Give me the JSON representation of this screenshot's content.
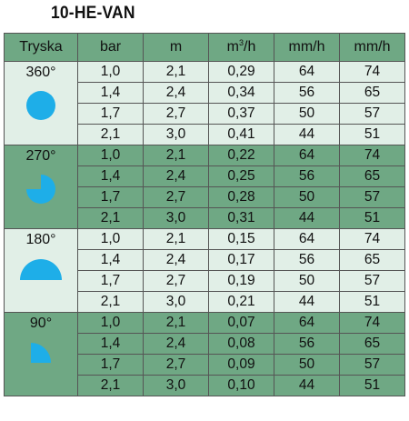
{
  "title": "10-HE-VAN",
  "headers": {
    "nozzle": "Tryska",
    "pressure": "bar",
    "radius": "m",
    "flow_base": "m",
    "flow_sup": "3",
    "flow_tail": "/h",
    "precip1": "mm/h",
    "precip2": "mm/h"
  },
  "colors": {
    "light_band": "#e1efe7",
    "dark_band": "#6fa884",
    "icon": "#1eaee8"
  },
  "groups": [
    {
      "arc": "360°",
      "icon": "full-circle-icon",
      "rows": [
        [
          "1,0",
          "2,1",
          "0,29",
          "64",
          "74"
        ],
        [
          "1,4",
          "2,4",
          "0,34",
          "56",
          "65"
        ],
        [
          "1,7",
          "2,7",
          "0,37",
          "50",
          "57"
        ],
        [
          "2,1",
          "3,0",
          "0,41",
          "44",
          "51"
        ]
      ]
    },
    {
      "arc": "270°",
      "icon": "three-quarter-circle-icon",
      "rows": [
        [
          "1,0",
          "2,1",
          "0,22",
          "64",
          "74"
        ],
        [
          "1,4",
          "2,4",
          "0,25",
          "56",
          "65"
        ],
        [
          "1,7",
          "2,7",
          "0,28",
          "50",
          "57"
        ],
        [
          "2,1",
          "3,0",
          "0,31",
          "44",
          "51"
        ]
      ]
    },
    {
      "arc": "180°",
      "icon": "half-circle-icon",
      "rows": [
        [
          "1,0",
          "2,1",
          "0,15",
          "64",
          "74"
        ],
        [
          "1,4",
          "2,4",
          "0,17",
          "56",
          "65"
        ],
        [
          "1,7",
          "2,7",
          "0,19",
          "50",
          "57"
        ],
        [
          "2,1",
          "3,0",
          "0,21",
          "44",
          "51"
        ]
      ]
    },
    {
      "arc": "90°",
      "icon": "quarter-circle-icon",
      "rows": [
        [
          "1,0",
          "2,1",
          "0,07",
          "64",
          "74"
        ],
        [
          "1,4",
          "2,4",
          "0,08",
          "56",
          "65"
        ],
        [
          "1,7",
          "2,7",
          "0,09",
          "50",
          "57"
        ],
        [
          "2,1",
          "3,0",
          "0,10",
          "44",
          "51"
        ]
      ]
    }
  ]
}
